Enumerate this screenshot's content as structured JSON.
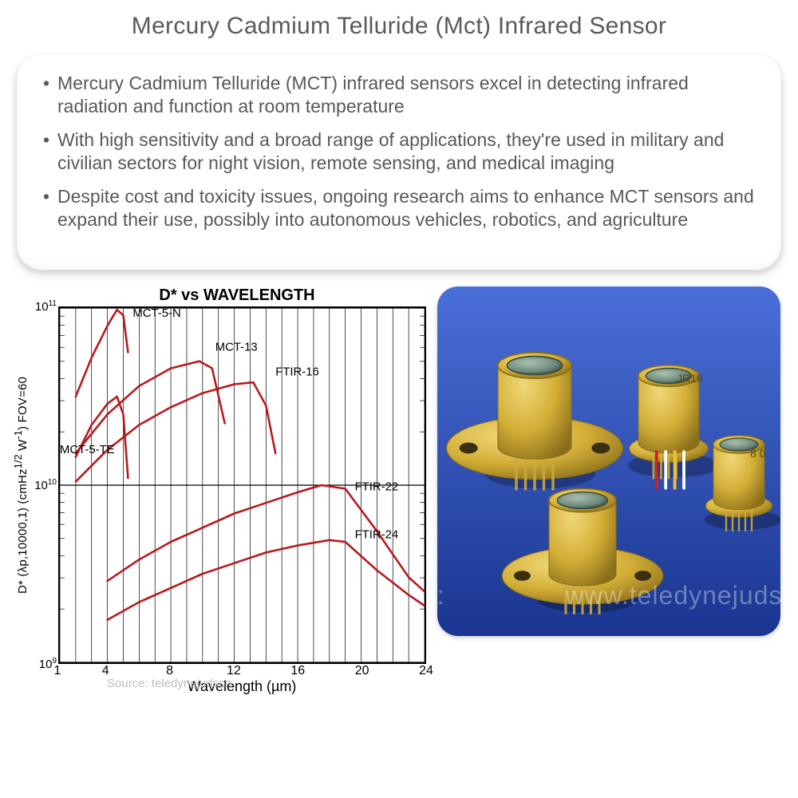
{
  "title": "Mercury Cadmium Telluride (Mct) Infrared Sensor",
  "bullets": [
    "Mercury Cadmium Telluride (MCT) infrared sensors excel in detecting infrared radiation and function at room temperature",
    "With high sensitivity and a broad range of applications, they're used in military and civilian sectors for night vision, remote sensing, and medical imaging",
    "Despite cost and toxicity issues, ongoing research aims to enhance MCT sensors and expand their use, possibly into autonomous vehicles, robotics, and agriculture"
  ],
  "chart": {
    "type": "line",
    "title": "D* vs WAVELENGTH",
    "xlabel": "Wavelength (µm)",
    "ylabel": "D* (λp,10000,1)  (cmHz^{1/2} W^{-1})  FOV=60",
    "xlim": [
      1,
      24
    ],
    "ylim_log10": [
      9,
      11
    ],
    "x_ticks": [
      1,
      4,
      8,
      12,
      16,
      20,
      24
    ],
    "y_ticks_exp": [
      9,
      10,
      11
    ],
    "x_minor_step": 1,
    "grid_color": "#000000",
    "grid_width": 0.7,
    "background_color": "#ffffff",
    "line_color": "#b8191e",
    "line_width": 2.6,
    "title_fontsize": 20,
    "label_fontsize": 17,
    "tick_fontsize": 15,
    "series": [
      {
        "name": "MCT-5-N",
        "label_xy": [
          5.6,
          10.95
        ],
        "points": [
          [
            2,
            10.5
          ],
          [
            3,
            10.72
          ],
          [
            4,
            10.9
          ],
          [
            4.6,
            10.99
          ],
          [
            5.0,
            10.96
          ],
          [
            5.3,
            10.75
          ]
        ]
      },
      {
        "name": "MCT-13",
        "label_xy": [
          10.8,
          10.76
        ],
        "points": [
          [
            2,
            10.18
          ],
          [
            4,
            10.4
          ],
          [
            6,
            10.56
          ],
          [
            8,
            10.66
          ],
          [
            9.8,
            10.7
          ],
          [
            10.6,
            10.66
          ],
          [
            11.4,
            10.35
          ]
        ]
      },
      {
        "name": "FTIR-16",
        "label_xy": [
          14.6,
          10.62
        ],
        "points": [
          [
            2,
            10.02
          ],
          [
            4,
            10.2
          ],
          [
            6,
            10.34
          ],
          [
            8,
            10.44
          ],
          [
            10,
            10.52
          ],
          [
            12,
            10.57
          ],
          [
            13.2,
            10.58
          ],
          [
            14.0,
            10.45
          ],
          [
            14.6,
            10.18
          ]
        ]
      },
      {
        "name": "MCT-5-TE",
        "label_xy": [
          1.0,
          10.18
        ],
        "points": [
          [
            2,
            10.16
          ],
          [
            3,
            10.34
          ],
          [
            4,
            10.46
          ],
          [
            4.6,
            10.5
          ],
          [
            5.0,
            10.4
          ],
          [
            5.3,
            10.04
          ]
        ]
      },
      {
        "name": "FTIR-22",
        "label_xy": [
          19.6,
          9.97
        ],
        "points": [
          [
            4,
            9.46
          ],
          [
            6,
            9.58
          ],
          [
            8,
            9.68
          ],
          [
            10,
            9.76
          ],
          [
            12,
            9.84
          ],
          [
            14,
            9.9
          ],
          [
            16,
            9.96
          ],
          [
            17.5,
            10.0
          ],
          [
            19,
            9.98
          ],
          [
            21,
            9.74
          ],
          [
            23,
            9.48
          ],
          [
            24,
            9.4
          ]
        ]
      },
      {
        "name": "FTIR-24",
        "label_xy": [
          19.6,
          9.7
        ],
        "points": [
          [
            4,
            9.24
          ],
          [
            6,
            9.34
          ],
          [
            8,
            9.42
          ],
          [
            10,
            9.5
          ],
          [
            12,
            9.56
          ],
          [
            14,
            9.62
          ],
          [
            16,
            9.66
          ],
          [
            18,
            9.69
          ],
          [
            19,
            9.68
          ],
          [
            21,
            9.52
          ],
          [
            23,
            9.38
          ],
          [
            24,
            9.32
          ]
        ]
      }
    ]
  },
  "photo": {
    "background_color": "#2a4fb8",
    "background_gradient_top": "#4a6fd8",
    "background_gradient_bottom": "#1a3590",
    "detector_body_color": "#d4af37",
    "detector_highlight": "#f0d878",
    "detector_shadow": "#8a6f1a",
    "window_color": "#6b8a7a",
    "window_rim": "#3a4a42",
    "pin_color": "#c8a840",
    "border_radius": 26,
    "watermark": "www.teledynejudson",
    "left_text": "ce:",
    "label_text": "JR18",
    "label_text2": "8 0"
  },
  "source_text": "Source: teledynejudson"
}
